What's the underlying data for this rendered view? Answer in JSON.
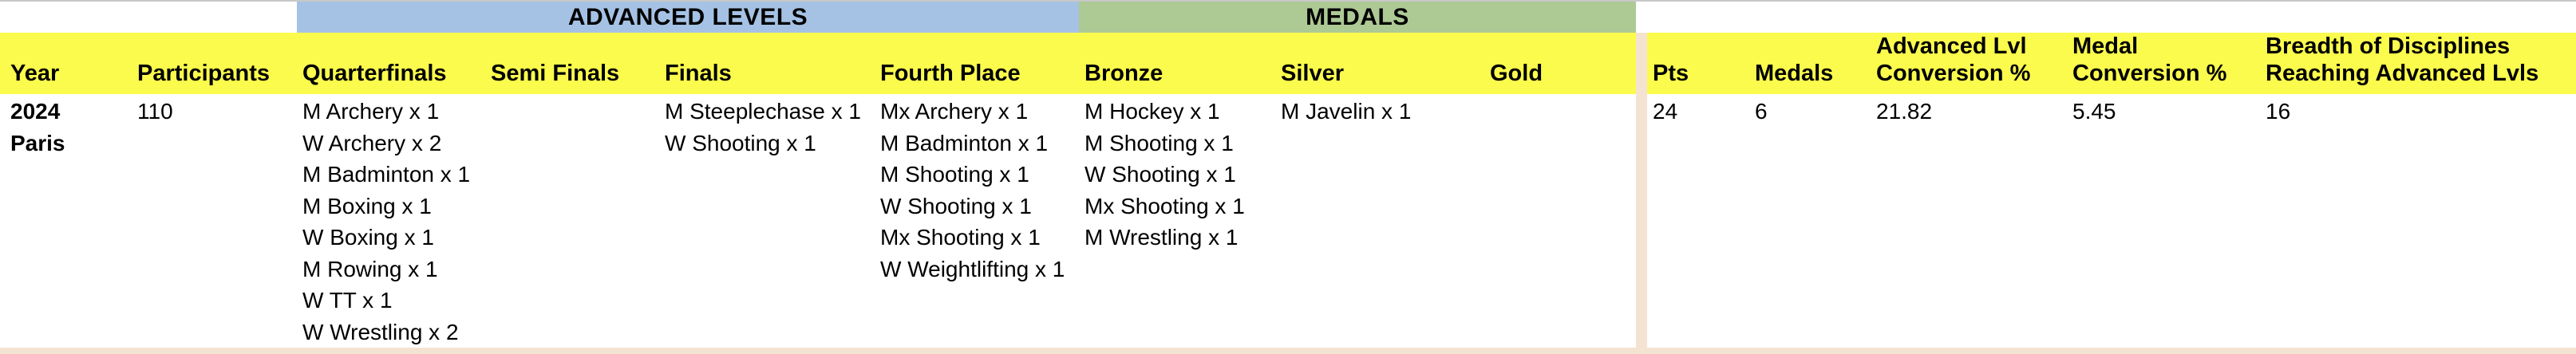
{
  "bands": {
    "advanced_levels": "ADVANCED LEVELS",
    "medals": "MEDALS"
  },
  "headers": {
    "year": "Year",
    "participants": "Participants",
    "quarterfinals": "Quarterfinals",
    "semi_finals": "Semi Finals",
    "finals": "Finals",
    "fourth_place": "Fourth Place",
    "bronze": "Bronze",
    "silver": "Silver",
    "gold": "Gold",
    "pts": "Pts",
    "medals": "Medals",
    "advanced_lvl_conversion": [
      "Advanced Lvl",
      "Conversion %"
    ],
    "medal_conversion": [
      "Medal",
      "Conversion %"
    ],
    "breadth": [
      "Breadth of Disciplines",
      "Reaching Advanced Lvls"
    ]
  },
  "row": {
    "year": [
      "2024",
      "Paris"
    ],
    "participants": "110",
    "quarterfinals": [
      "M Archery x 1",
      "W Archery x 2",
      "M Badminton x 1",
      "M Boxing x 1",
      "W Boxing x 1",
      "M Rowing x 1",
      "W TT x 1",
      "W Wrestling x 2"
    ],
    "semi_finals": [],
    "finals": [
      "M Steeplechase x 1",
      "W Shooting x 1"
    ],
    "fourth_place": [
      "Mx Archery x 1",
      "M Badminton x 1",
      "M Shooting x 1",
      "W Shooting x 1",
      "Mx Shooting x 1",
      "W Weightlifting x 1"
    ],
    "bronze": [
      "M Hockey x 1",
      "M Shooting x 1",
      "W Shooting x 1",
      "Mx Shooting x 1",
      "M Wrestling x 1"
    ],
    "silver": [
      "M Javelin x 1"
    ],
    "gold": [],
    "pts": "24",
    "medals": "6",
    "advanced_lvl_conversion_pct": "21.82",
    "medal_conversion_pct": "5.45",
    "breadth_disciplines_reaching_advanced": "16"
  },
  "colors": {
    "band_advanced": "#a5c2e4",
    "band_medals": "#adc994",
    "header_yellow": "#fbfb4d",
    "divider_peach": "#f5e3d2",
    "top_border_gray": "#c8c8c8"
  }
}
